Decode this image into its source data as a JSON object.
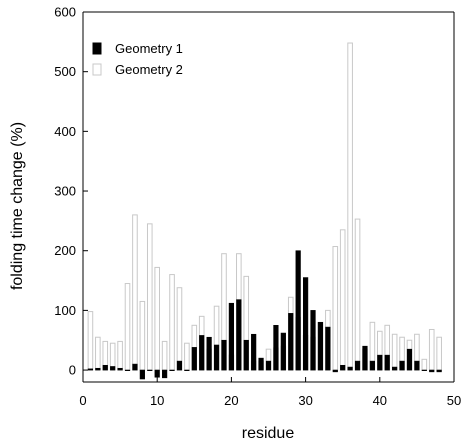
{
  "chart_data": {
    "type": "bar",
    "xlabel": "residue",
    "ylabel": "folding time change (%)",
    "xlim": [
      0,
      50
    ],
    "ylim": [
      -20,
      600
    ],
    "xticks": [
      0,
      10,
      20,
      30,
      40,
      50
    ],
    "yticks": [
      0,
      100,
      200,
      300,
      400,
      500,
      600
    ],
    "grid": false,
    "legend_position": "top-left",
    "x": [
      1,
      2,
      3,
      4,
      5,
      6,
      7,
      8,
      9,
      10,
      11,
      12,
      13,
      14,
      15,
      16,
      17,
      18,
      19,
      20,
      21,
      22,
      23,
      24,
      25,
      26,
      27,
      28,
      29,
      30,
      31,
      32,
      33,
      34,
      35,
      36,
      37,
      38,
      39,
      40,
      41,
      42,
      43,
      44,
      45,
      46,
      47,
      48
    ],
    "series": [
      {
        "name": "Geometry 1",
        "color": "#000000",
        "values": [
          2,
          3,
          8,
          6,
          3,
          0,
          10,
          -15,
          0,
          -12,
          -13,
          0,
          15,
          0,
          38,
          58,
          55,
          42,
          50,
          112,
          118,
          50,
          60,
          20,
          15,
          75,
          62,
          95,
          200,
          155,
          100,
          80,
          72,
          -3,
          8,
          5,
          15,
          40,
          15,
          25,
          25,
          5,
          15,
          35,
          15,
          0,
          -3,
          -3
        ]
      },
      {
        "name": "Geometry 2",
        "color": "#ffffff",
        "values": [
          98,
          55,
          48,
          45,
          48,
          145,
          260,
          115,
          245,
          172,
          48,
          160,
          138,
          45,
          75,
          90,
          35,
          107,
          195,
          25,
          195,
          157,
          15,
          15,
          35,
          37,
          40,
          122,
          88,
          58,
          55,
          80,
          100,
          207,
          235,
          548,
          253,
          35,
          80,
          65,
          75,
          60,
          55,
          50,
          60,
          18,
          68,
          55
        ]
      }
    ]
  }
}
